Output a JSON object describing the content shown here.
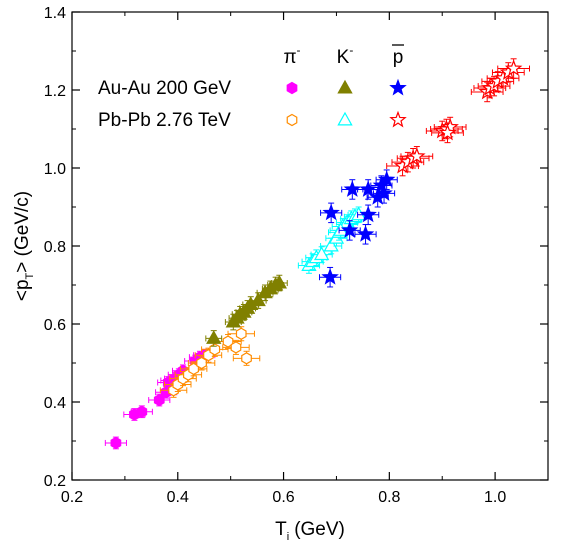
{
  "chart_data": {
    "type": "scatter",
    "xlabel": "T",
    "xlabel_sub": "i",
    "xlabel_unit": "(GeV)",
    "ylabel_pre": "<p",
    "ylabel_sub": "T",
    "ylabel_post": "> (GeV/c)",
    "xlim": [
      0.2,
      1.1
    ],
    "ylim": [
      0.2,
      1.4
    ],
    "x_ticks": [
      "0.2",
      "0.4",
      "0.6",
      "0.8",
      "1.0"
    ],
    "y_ticks": [
      "0.2",
      "0.4",
      "0.6",
      "0.8",
      "1.0",
      "1.2",
      "1.4"
    ],
    "grid": false,
    "legend": {
      "placement": "top-left",
      "columns": [
        {
          "label": "π",
          "sup": "-"
        },
        {
          "label": "K",
          "sup": "-"
        },
        {
          "label": "p",
          "overline": true
        }
      ],
      "rows": [
        "Au-Au 200 GeV",
        "Pb-Pb 2.76 TeV"
      ]
    },
    "colors": {
      "pion": "#ff00ff",
      "pion_open": "#ff8c00",
      "kaon": "#808000",
      "kaon_open": "#00ffff",
      "proton": "#0000ff",
      "proton_open": "#ff0000"
    },
    "series": [
      {
        "name": "π⁻ Au-Au 200 GeV",
        "marker": "hexagon",
        "fill": "filled",
        "color": "#ff00ff",
        "points": [
          [
            0.283,
            0.295
          ],
          [
            0.318,
            0.368
          ],
          [
            0.332,
            0.375
          ],
          [
            0.365,
            0.405
          ],
          [
            0.378,
            0.425
          ],
          [
            0.382,
            0.45
          ],
          [
            0.388,
            0.455
          ],
          [
            0.395,
            0.46
          ],
          [
            0.402,
            0.47
          ],
          [
            0.41,
            0.48
          ],
          [
            0.433,
            0.505
          ],
          [
            0.442,
            0.515
          ],
          [
            0.45,
            0.52
          ]
        ],
        "xerr": 0.02,
        "yerr": 0.015
      },
      {
        "name": "π⁻ Pb-Pb 2.76 TeV",
        "marker": "hexagon",
        "fill": "open",
        "color": "#ff8c00",
        "points": [
          [
            0.392,
            0.43
          ],
          [
            0.4,
            0.445
          ],
          [
            0.41,
            0.46
          ],
          [
            0.42,
            0.47
          ],
          [
            0.43,
            0.485
          ],
          [
            0.445,
            0.5
          ],
          [
            0.458,
            0.52
          ],
          [
            0.47,
            0.535
          ],
          [
            0.495,
            0.555
          ],
          [
            0.51,
            0.54
          ],
          [
            0.53,
            0.512
          ],
          [
            0.52,
            0.575
          ]
        ],
        "xerr": 0.025,
        "yerr": 0.018
      },
      {
        "name": "K⁻ Au-Au 200 GeV",
        "marker": "triangle",
        "fill": "filled",
        "color": "#808000",
        "points": [
          [
            0.468,
            0.563
          ],
          [
            0.505,
            0.605
          ],
          [
            0.512,
            0.615
          ],
          [
            0.518,
            0.625
          ],
          [
            0.525,
            0.63
          ],
          [
            0.532,
            0.64
          ],
          [
            0.538,
            0.65
          ],
          [
            0.552,
            0.66
          ],
          [
            0.565,
            0.68
          ],
          [
            0.575,
            0.69
          ],
          [
            0.585,
            0.7
          ],
          [
            0.592,
            0.705
          ]
        ],
        "xerr": 0.015,
        "yerr": 0.02
      },
      {
        "name": "K⁻ Pb-Pb 2.76 TeV",
        "marker": "triangle",
        "fill": "open",
        "color": "#00ffff",
        "points": [
          [
            0.648,
            0.75
          ],
          [
            0.655,
            0.76
          ],
          [
            0.662,
            0.77
          ],
          [
            0.672,
            0.778
          ],
          [
            0.69,
            0.8
          ],
          [
            0.7,
            0.82
          ],
          [
            0.705,
            0.835
          ],
          [
            0.712,
            0.85
          ],
          [
            0.72,
            0.86
          ],
          [
            0.728,
            0.87
          ],
          [
            0.735,
            0.875
          ],
          [
            0.742,
            0.88
          ],
          [
            0.708,
            0.84
          ]
        ],
        "xerr": 0.02,
        "yerr": 0.02
      },
      {
        "name": "p̄ Au-Au 200 GeV",
        "marker": "star",
        "fill": "filled",
        "color": "#0000ff",
        "points": [
          [
            0.688,
            0.72
          ],
          [
            0.69,
            0.885
          ],
          [
            0.725,
            0.84
          ],
          [
            0.73,
            0.945
          ],
          [
            0.755,
            0.83
          ],
          [
            0.76,
            0.88
          ],
          [
            0.778,
            0.925
          ],
          [
            0.785,
            0.955
          ],
          [
            0.79,
            0.935
          ],
          [
            0.795,
            0.97
          ],
          [
            0.76,
            0.945
          ]
        ],
        "xerr": 0.02,
        "yerr": 0.025
      },
      {
        "name": "p̄ Pb-Pb 2.76 TeV",
        "marker": "star",
        "fill": "open",
        "color": "#ff0000",
        "points": [
          [
            0.825,
            1.005
          ],
          [
            0.835,
            1.015
          ],
          [
            0.845,
            1.025
          ],
          [
            0.852,
            1.03
          ],
          [
            0.9,
            1.095
          ],
          [
            0.908,
            1.1
          ],
          [
            0.915,
            1.105
          ],
          [
            0.91,
            1.09
          ],
          [
            0.985,
            1.195
          ],
          [
            0.99,
            1.205
          ],
          [
            0.998,
            1.21
          ],
          [
            1.005,
            1.222
          ],
          [
            1.015,
            1.23
          ],
          [
            1.025,
            1.245
          ],
          [
            1.035,
            1.255
          ]
        ],
        "xerr": 0.03,
        "yerr": 0.025
      }
    ]
  }
}
